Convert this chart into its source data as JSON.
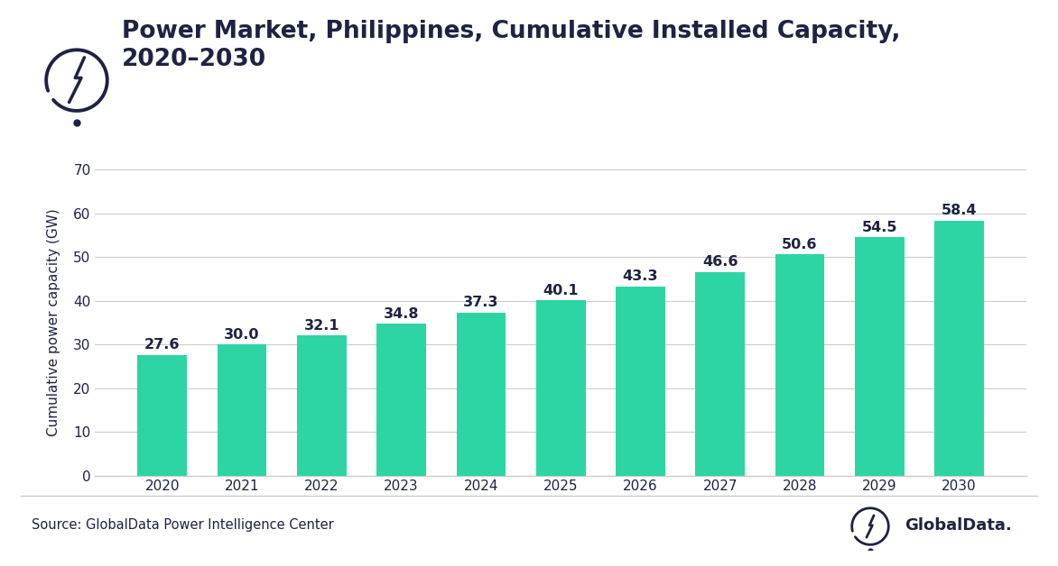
{
  "title_line1": "Power Market, Philippines, Cumulative Installed Capacity,",
  "title_line2": "2020–2030",
  "ylabel": "Cumulative power capacity (GW)",
  "source_text": "Source: GlobalData Power Intelligence Center",
  "globaldata_text": "GlobalData.",
  "categories": [
    "2020",
    "2021",
    "2022",
    "2023",
    "2024",
    "2025",
    "2026",
    "2027",
    "2028",
    "2029",
    "2030"
  ],
  "values": [
    27.6,
    30.0,
    32.1,
    34.8,
    37.3,
    40.1,
    43.3,
    46.6,
    50.6,
    54.5,
    58.4
  ],
  "bar_color": "#2dd5a4",
  "ylim": [
    0,
    70
  ],
  "yticks": [
    0,
    10,
    20,
    30,
    40,
    50,
    60,
    70
  ],
  "label_color": "#1e2243",
  "axis_color": "#1e2243",
  "grid_color": "#cccccc",
  "background_color": "#ffffff",
  "title_color": "#1e2243",
  "footer_line_color": "#cccccc",
  "label_fontsize": 11.5,
  "title_fontsize": 19,
  "ylabel_fontsize": 11,
  "tick_fontsize": 11,
  "source_fontsize": 10.5
}
